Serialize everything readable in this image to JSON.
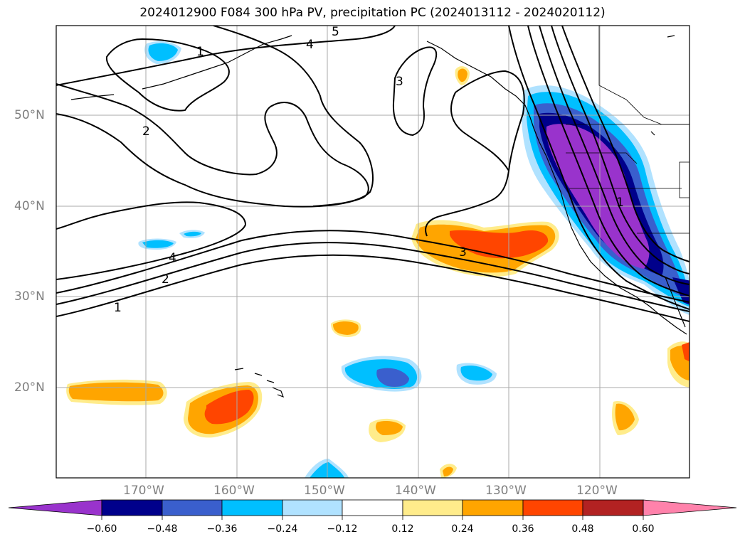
{
  "title": "2024012900 F084 300 hPa PV, precipitation PC (2024013112 - 2024020112)",
  "map": {
    "lat_labels": [
      "50°N",
      "40°N",
      "30°N",
      "20°N"
    ],
    "lon_labels": [
      "170°W",
      "160°W",
      "150°W",
      "140°W",
      "130°W",
      "120°W"
    ],
    "contour_labels": [
      "1",
      "2",
      "5",
      "4",
      "3",
      "3",
      "4",
      "2",
      "1",
      "1"
    ]
  },
  "colorbar": {
    "ticks": [
      "−0.60",
      "−0.48",
      "−0.36",
      "−0.24",
      "−0.12",
      "0.12",
      "0.24",
      "0.36",
      "0.48",
      "0.60"
    ],
    "colors": [
      "#9933cc",
      "#00008b",
      "#3a5fcd",
      "#00bfff",
      "#b0e2ff",
      "#ffffff",
      "#ffec8b",
      "#ffa500",
      "#ff4500",
      "#b22222",
      "#ff82ab"
    ]
  }
}
